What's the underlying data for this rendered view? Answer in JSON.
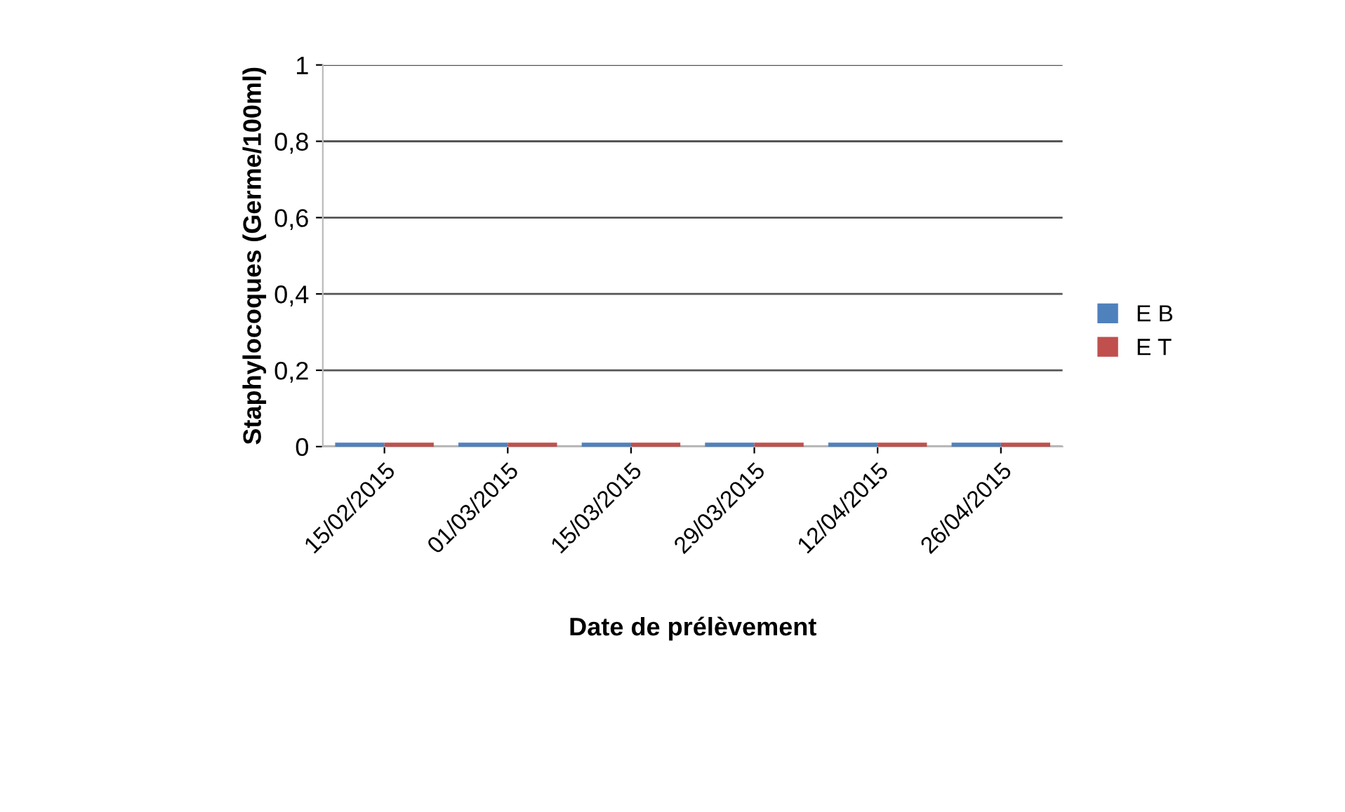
{
  "chart_data": {
    "type": "bar",
    "xlabel": "Date de prélèvement",
    "ylabel": "Staphylocoques (Germe/100ml)",
    "categories": [
      "15/02/2015",
      "01/03/2015",
      "15/03/2015",
      "29/03/2015",
      "12/04/2015",
      "26/04/2015"
    ],
    "series": [
      {
        "name": "E B",
        "color": "#4f81bd",
        "values": [
          0,
          0,
          0,
          0,
          0,
          0
        ]
      },
      {
        "name": "E T",
        "color": "#c0504d",
        "values": [
          0,
          0,
          0,
          0,
          0,
          0
        ]
      }
    ],
    "ylim": [
      0,
      1
    ],
    "yticks": [
      0,
      {
        "value": 0.2,
        "label": "0,2"
      },
      {
        "value": 0.4,
        "label": "0,4"
      },
      {
        "value": 0.6,
        "label": "0,6"
      },
      {
        "value": 0.8,
        "label": "0,8"
      },
      1
    ],
    "grid": "y",
    "legend": "right"
  }
}
